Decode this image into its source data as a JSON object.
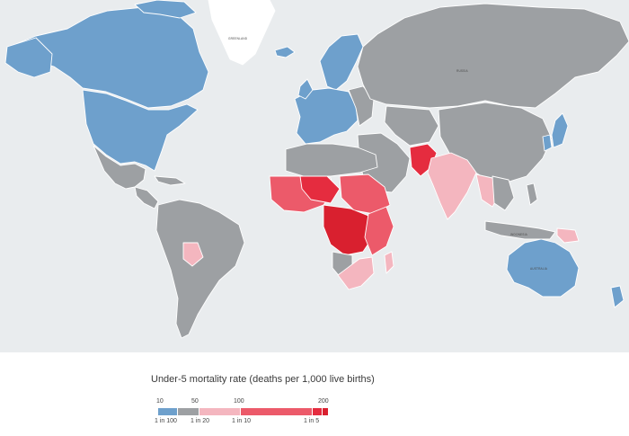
{
  "legend": {
    "title": "Under-5 mortality rate (deaths per 1,000 live births)",
    "top_ticks": [
      "10",
      "50",
      "100",
      "200"
    ],
    "bottom_ticks": [
      "1 in 100",
      "1 in 20",
      "1 in 10",
      "1 in 5"
    ]
  },
  "colors": {
    "ocean": "#e9ecee",
    "greenland": "#ffffff",
    "under_10": "#6ea0cc",
    "10_to_50": "#9da0a3",
    "50_to_100": "#f4b6bf",
    "100_to_150": "#ec5a6a",
    "150_to_200": "#e52c3f",
    "over_200": "#d9202f"
  },
  "map_labels": {
    "greenland": "GREENLAND",
    "russia": "RUSSIA",
    "indonesia": "INDONESIA",
    "australia": "AUSTRALIA"
  }
}
